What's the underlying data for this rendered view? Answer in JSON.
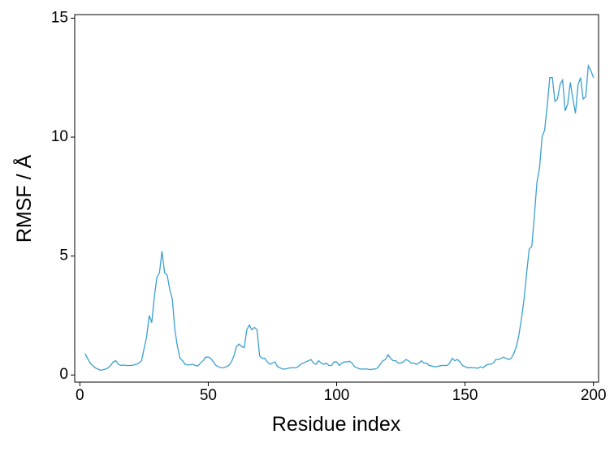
{
  "chart_data": {
    "type": "line",
    "xlabel": "Residue index",
    "ylabel": "RMSF / Å",
    "color": "#3a9fd0",
    "x": [
      2,
      3,
      4,
      5,
      6,
      7,
      8,
      9,
      10,
      11,
      12,
      13,
      14,
      15,
      16,
      17,
      18,
      19,
      20,
      21,
      22,
      23,
      24,
      25,
      26,
      27,
      28,
      29,
      30,
      31,
      32,
      33,
      34,
      35,
      36,
      37,
      38,
      39,
      40,
      41,
      42,
      43,
      44,
      45,
      46,
      47,
      48,
      49,
      50,
      51,
      52,
      53,
      54,
      55,
      56,
      57,
      58,
      59,
      60,
      61,
      62,
      63,
      64,
      65,
      66,
      67,
      68,
      69,
      70,
      71,
      72,
      73,
      74,
      75,
      76,
      77,
      78,
      79,
      80,
      81,
      82,
      83,
      84,
      85,
      86,
      87,
      88,
      89,
      90,
      91,
      92,
      93,
      94,
      95,
      96,
      97,
      98,
      99,
      100,
      101,
      102,
      103,
      104,
      105,
      106,
      107,
      108,
      109,
      110,
      111,
      112,
      113,
      114,
      115,
      116,
      117,
      118,
      119,
      120,
      121,
      122,
      123,
      124,
      125,
      126,
      127,
      128,
      129,
      130,
      131,
      132,
      133,
      134,
      135,
      136,
      137,
      138,
      139,
      140,
      141,
      142,
      143,
      144,
      145,
      146,
      147,
      148,
      149,
      150,
      151,
      152,
      153,
      154,
      155,
      156,
      157,
      158,
      159,
      160,
      161,
      162,
      163,
      164,
      165,
      166,
      167,
      168,
      169,
      170,
      171,
      172,
      173,
      174,
      175,
      176,
      177,
      178,
      179,
      180,
      181,
      182,
      183,
      184,
      185,
      186,
      187,
      188,
      189,
      190,
      191,
      192,
      193,
      194,
      195,
      196,
      197,
      198,
      199,
      200
    ],
    "values": [
      0.9,
      0.7,
      0.5,
      0.4,
      0.3,
      0.25,
      0.2,
      0.22,
      0.25,
      0.3,
      0.4,
      0.55,
      0.6,
      0.45,
      0.4,
      0.42,
      0.4,
      0.4,
      0.4,
      0.42,
      0.45,
      0.5,
      0.6,
      1.1,
      1.6,
      2.5,
      2.2,
      3.3,
      4.1,
      4.3,
      5.2,
      4.3,
      4.2,
      3.6,
      3.2,
      1.9,
      1.2,
      0.7,
      0.6,
      0.45,
      0.42,
      0.43,
      0.45,
      0.4,
      0.38,
      0.5,
      0.6,
      0.75,
      0.75,
      0.7,
      0.55,
      0.4,
      0.35,
      0.3,
      0.3,
      0.35,
      0.4,
      0.55,
      0.8,
      1.2,
      1.3,
      1.2,
      1.15,
      1.9,
      2.1,
      1.9,
      2.0,
      1.9,
      0.8,
      0.7,
      0.7,
      0.55,
      0.45,
      0.5,
      0.55,
      0.35,
      0.3,
      0.25,
      0.25,
      0.28,
      0.3,
      0.3,
      0.3,
      0.35,
      0.45,
      0.5,
      0.55,
      0.6,
      0.65,
      0.5,
      0.45,
      0.6,
      0.5,
      0.45,
      0.5,
      0.4,
      0.4,
      0.55,
      0.55,
      0.4,
      0.5,
      0.55,
      0.55,
      0.58,
      0.5,
      0.35,
      0.3,
      0.25,
      0.25,
      0.25,
      0.25,
      0.22,
      0.25,
      0.25,
      0.3,
      0.45,
      0.6,
      0.65,
      0.85,
      0.7,
      0.6,
      0.6,
      0.5,
      0.5,
      0.55,
      0.65,
      0.6,
      0.5,
      0.5,
      0.45,
      0.5,
      0.6,
      0.5,
      0.5,
      0.4,
      0.38,
      0.35,
      0.35,
      0.38,
      0.4,
      0.4,
      0.4,
      0.5,
      0.7,
      0.6,
      0.65,
      0.55,
      0.4,
      0.35,
      0.3,
      0.32,
      0.3,
      0.3,
      0.28,
      0.35,
      0.3,
      0.4,
      0.45,
      0.45,
      0.5,
      0.65,
      0.65,
      0.7,
      0.75,
      0.7,
      0.65,
      0.7,
      0.9,
      1.2,
      1.7,
      2.4,
      3.2,
      4.3,
      5.3,
      5.4,
      6.7,
      8.1,
      8.7,
      10.0,
      10.3,
      11.3,
      12.5,
      12.5,
      11.5,
      11.6,
      12.2,
      12.4,
      11.1,
      11.4,
      12.3,
      11.6,
      11.0,
      12.2,
      12.5,
      11.6,
      11.7,
      13.0,
      12.8,
      12.5
    ],
    "xlim": [
      -2,
      202
    ],
    "ylim": [
      -0.3,
      15.15
    ],
    "xticks": [
      0,
      50,
      100,
      150,
      200
    ],
    "yticks": [
      0,
      5,
      10,
      15
    ]
  }
}
